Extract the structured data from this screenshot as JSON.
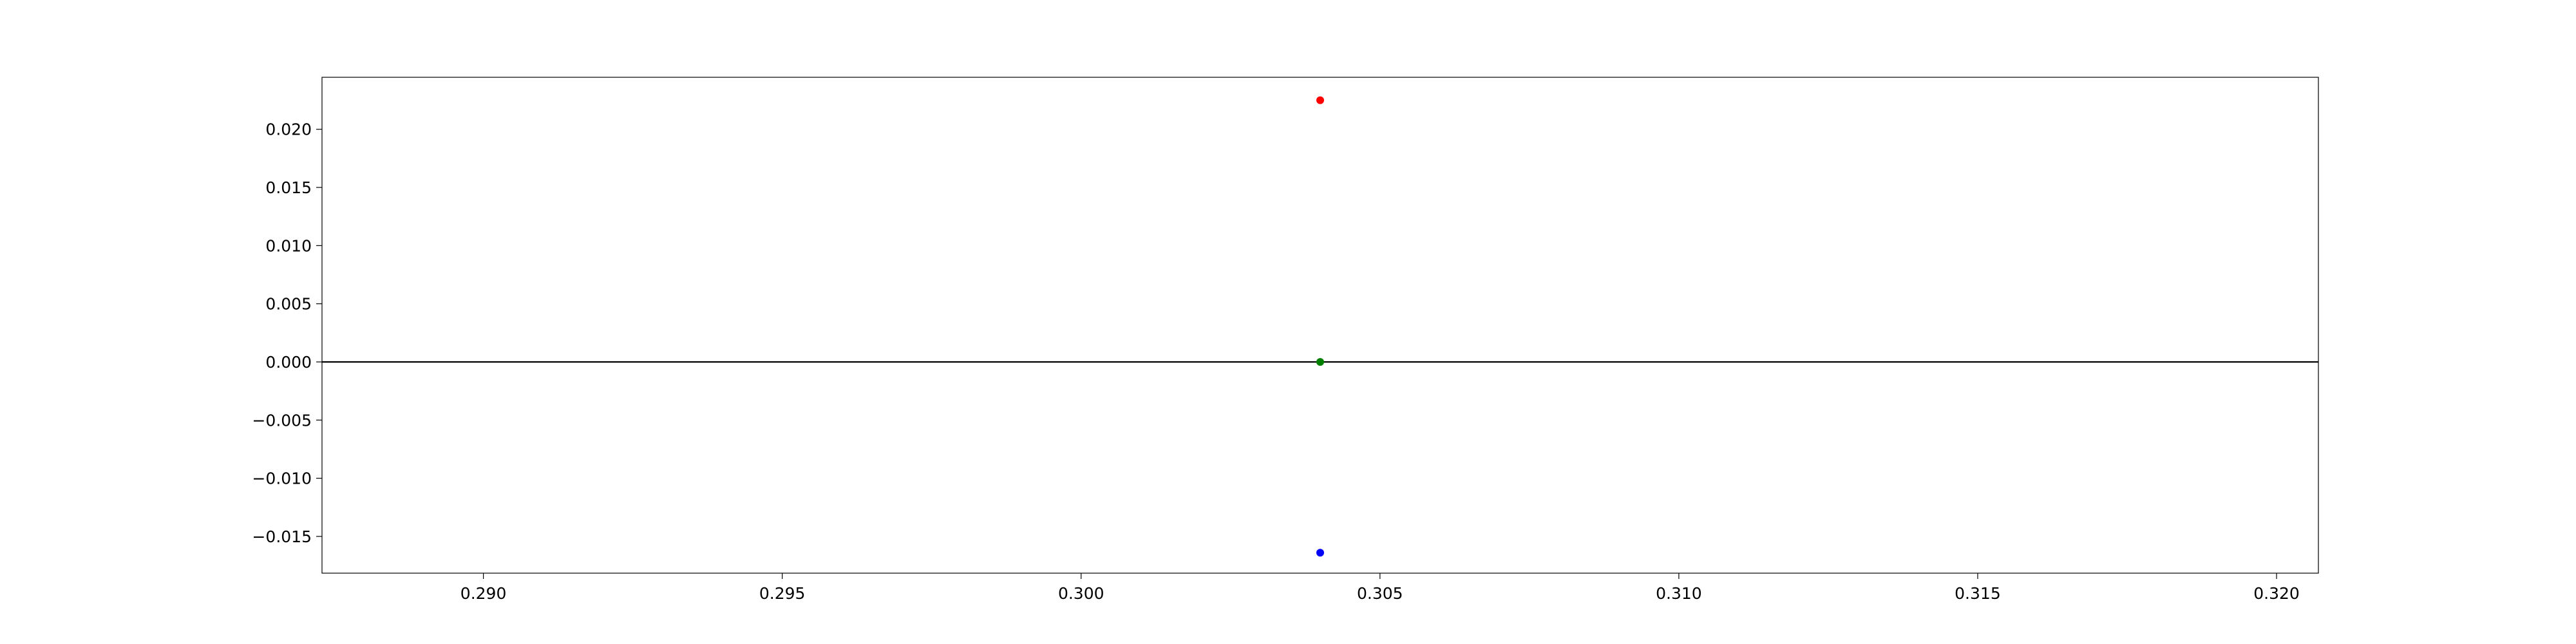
{
  "chart_data": {
    "type": "scatter",
    "title": "",
    "xlabel": "",
    "ylabel": "",
    "xlim": [
      0.2873,
      0.3207
    ],
    "ylim": [
      -0.01816,
      0.02447
    ],
    "grid": false,
    "legend": "none",
    "x_ticks": [
      {
        "value": 0.29,
        "label": "0.290"
      },
      {
        "value": 0.295,
        "label": "0.295"
      },
      {
        "value": 0.3,
        "label": "0.300"
      },
      {
        "value": 0.305,
        "label": "0.305"
      },
      {
        "value": 0.31,
        "label": "0.310"
      },
      {
        "value": 0.315,
        "label": "0.315"
      },
      {
        "value": 0.32,
        "label": "0.320"
      }
    ],
    "y_ticks": [
      {
        "value": 0.02,
        "label": "0.020"
      },
      {
        "value": 0.015,
        "label": "0.015"
      },
      {
        "value": 0.01,
        "label": "0.010"
      },
      {
        "value": 0.005,
        "label": "0.005"
      },
      {
        "value": 0.0,
        "label": "0.000"
      },
      {
        "value": -0.005,
        "label": "−0.005"
      },
      {
        "value": -0.01,
        "label": "−0.010"
      },
      {
        "value": -0.015,
        "label": "−0.015"
      }
    ],
    "reference_line": {
      "y": 0.0,
      "color": "#000000"
    },
    "points": [
      {
        "x": 0.304,
        "y": 0.0225,
        "color": "#ff0000"
      },
      {
        "x": 0.304,
        "y": 0.0,
        "color": "#008000"
      },
      {
        "x": 0.304,
        "y": -0.0164,
        "color": "#0000ff"
      }
    ]
  }
}
